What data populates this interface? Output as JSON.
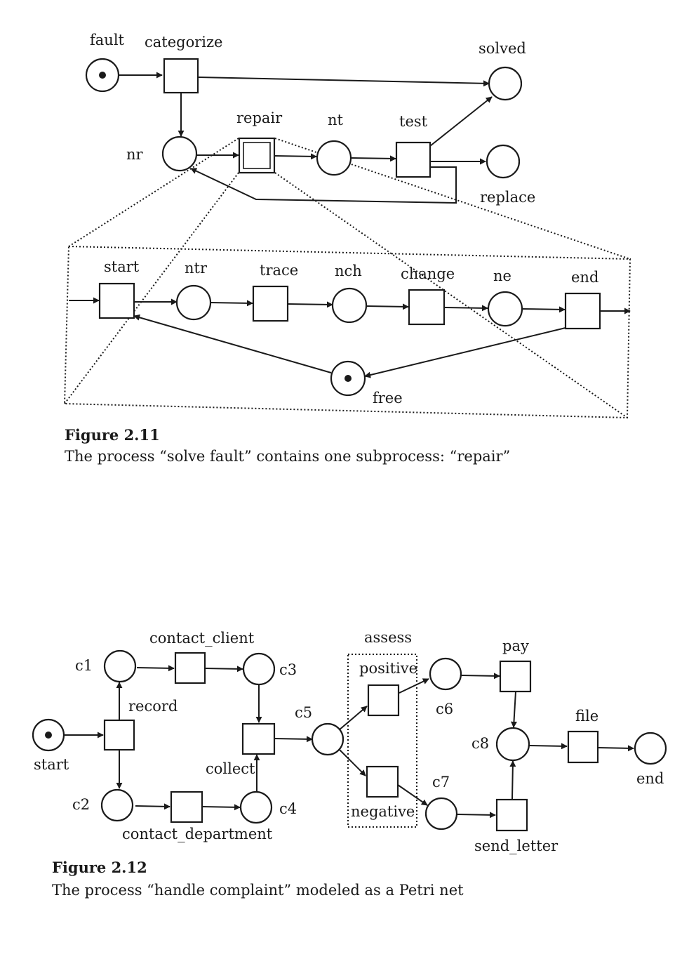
{
  "figure_2_11": {
    "labels": {
      "fault": "fault",
      "categorize": "categorize",
      "solved": "solved",
      "repair": "repair",
      "nt": "nt",
      "test": "test",
      "nr": "nr",
      "replace": "replace"
    },
    "subprocess": {
      "start": "start",
      "ntr": "ntr",
      "trace": "trace",
      "nch": "nch",
      "change": "change",
      "ne": "ne",
      "end": "end",
      "free": "free"
    },
    "caption_title": "Figure 2.11",
    "caption_text": "The process “solve fault” contains one subprocess: “repair”"
  },
  "figure_2_12": {
    "labels": {
      "contact_client": "contact_client",
      "c1": "c1",
      "c3": "c3",
      "record": "record",
      "start": "start",
      "c2": "c2",
      "contact_department": "contact_department",
      "c4": "c4",
      "collect": "collect",
      "c5": "c5",
      "assess": "assess",
      "positive": "positive",
      "negative": "negative",
      "c6": "c6",
      "c7": "c7",
      "pay": "pay",
      "c8": "c8",
      "send_letter": "send_letter",
      "file": "file",
      "end": "end"
    },
    "caption_title": "Figure 2.12",
    "caption_text": "The process “handle complaint” modeled as a Petri net"
  }
}
